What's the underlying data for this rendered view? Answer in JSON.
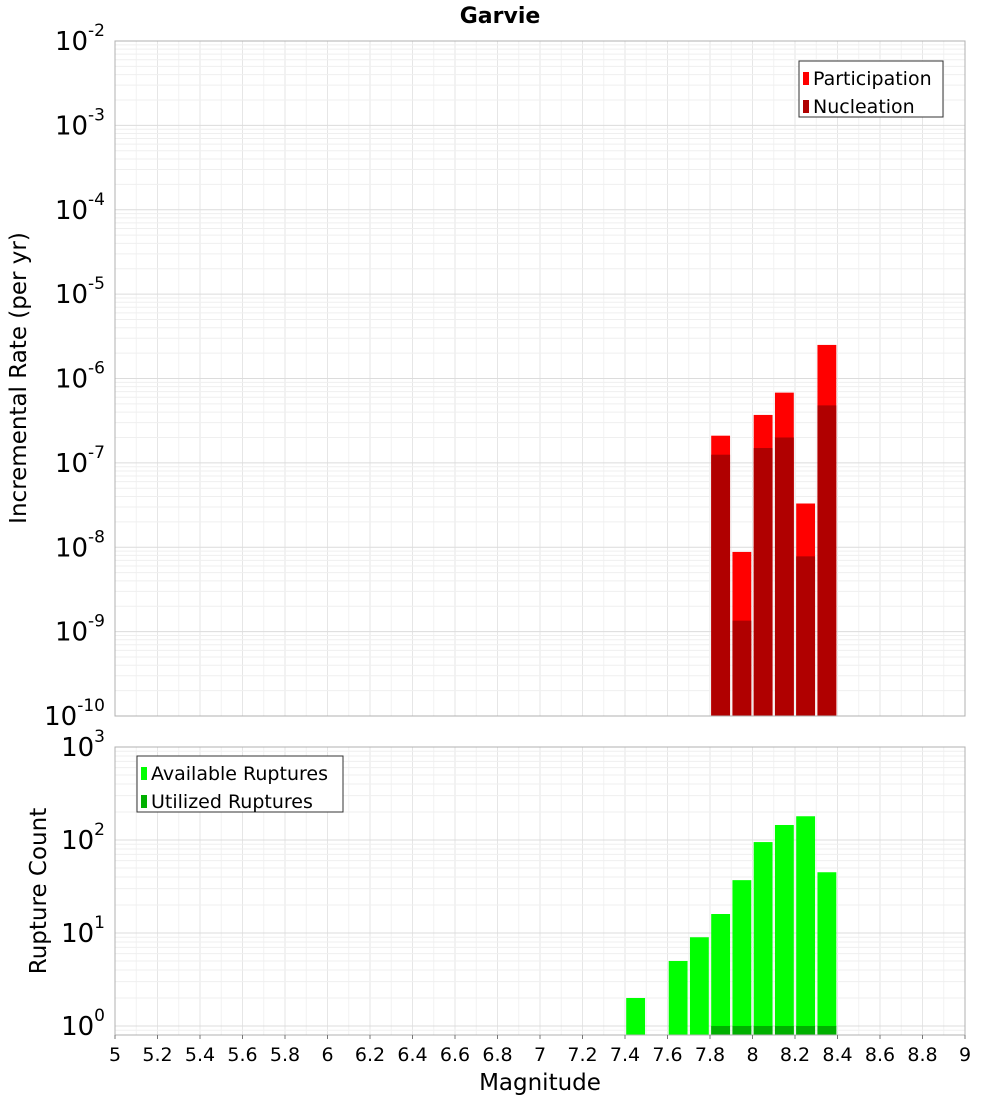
{
  "chart_data": [
    {
      "type": "bar",
      "title": "Garvie",
      "xlabel": "",
      "ylabel": "Incremental Rate (per yr)",
      "x_scale": "linear",
      "y_scale": "log",
      "xlim": [
        5,
        9
      ],
      "ylim": [
        1e-10,
        0.01
      ],
      "bin_width": 0.1,
      "x": [
        7.85,
        7.95,
        8.05,
        8.15,
        8.25,
        8.35
      ],
      "series": [
        {
          "name": "Participation",
          "color": "#ff0000",
          "values": [
            2.1e-07,
            8.8e-09,
            3.7e-07,
            6.8e-07,
            3.3e-08,
            2.5e-06
          ]
        },
        {
          "name": "Nucleation",
          "color": "#b00000",
          "values": [
            1.25e-07,
            1.35e-09,
            1.5e-07,
            2e-07,
            7.8e-09,
            4.8e-07
          ]
        }
      ],
      "y_tick_exponents": [
        -10,
        -9,
        -8,
        -7,
        -6,
        -5,
        -4,
        -3,
        -2
      ],
      "grid": true,
      "legend_position": "top-right"
    },
    {
      "type": "bar",
      "title": "",
      "xlabel": "Magnitude",
      "ylabel": "Rupture Count",
      "x_scale": "linear",
      "y_scale": "log",
      "xlim": [
        5,
        9
      ],
      "ylim": [
        0.8,
        1000
      ],
      "bin_width": 0.1,
      "series": [
        {
          "name": "Available Ruptures",
          "color": "#00ff00",
          "x": [
            7.45,
            7.65,
            7.75,
            7.85,
            7.95,
            8.05,
            8.15,
            8.25,
            8.35
          ],
          "values": [
            2,
            5,
            9,
            16,
            37,
            95,
            145,
            180,
            45
          ]
        },
        {
          "name": "Utilized Ruptures",
          "color": "#00b000",
          "x": [
            7.85,
            7.95,
            8.05,
            8.15,
            8.25,
            8.35
          ],
          "values": [
            1,
            1,
            1,
            1,
            1,
            1
          ]
        }
      ],
      "x_ticks": [
        "5",
        "5.2",
        "5.4",
        "5.6",
        "5.8",
        "6",
        "6.2",
        "6.4",
        "6.6",
        "6.8",
        "7",
        "7.2",
        "7.4",
        "7.6",
        "7.8",
        "8",
        "8.2",
        "8.4",
        "8.6",
        "8.8",
        "9"
      ],
      "y_tick_exponents": [
        0,
        1,
        2,
        3
      ],
      "grid": true,
      "legend_position": "top-left"
    }
  ]
}
